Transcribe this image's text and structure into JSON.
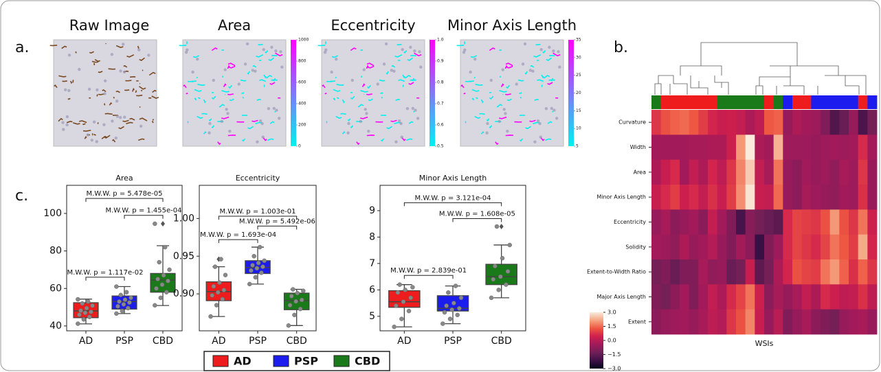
{
  "panel_labels": [
    "a.",
    "b.",
    "c."
  ],
  "panel_a": [
    {
      "title": "Raw Image"
    },
    {
      "title": "Area",
      "colorbar": {
        "lim": [
          0,
          1000
        ],
        "ticks": [
          0,
          200,
          400,
          600,
          800,
          1000
        ],
        "colors": [
          "#00f0f0",
          "#ff00ff"
        ]
      }
    },
    {
      "title": "Eccentricity",
      "colorbar": {
        "lim": [
          0.5,
          1.0
        ],
        "ticks": [
          0.5,
          0.6,
          0.7,
          0.8,
          0.9,
          {
            "value": 1,
            "label": "1.0"
          }
        ],
        "colors": [
          "#00f0f0",
          "#ff00ff"
        ]
      }
    },
    {
      "title": "Minor Axis Length",
      "colorbar": {
        "lim": [
          5,
          35
        ],
        "ticks": [
          5,
          10,
          15,
          20,
          25,
          30,
          35
        ],
        "colors": [
          "#00f0f0",
          "#ff00ff"
        ]
      }
    }
  ],
  "legend": [
    {
      "name": "AD",
      "color": "#ee1c1c"
    },
    {
      "name": "PSP",
      "color": "#1c1cee"
    },
    {
      "name": "CBD",
      "color": "#1a7a1a"
    }
  ],
  "chart_data": [
    {
      "type": "box",
      "title": "Area",
      "categories": [
        "AD",
        "PSP",
        "CBD"
      ],
      "whisker_low": [
        41.1,
        46.6,
        50.9
      ],
      "q1": [
        44.4,
        49,
        58
      ],
      "median": [
        48,
        53,
        64.5
      ],
      "q3": [
        52.4,
        56,
        68
      ],
      "whisker_high": [
        54.3,
        61,
        82.8
      ],
      "outliers": [
        [],
        [],
        [
          94.5
        ]
      ],
      "points": [
        [
          41.2,
          43.5,
          44.8,
          46,
          47,
          47.5,
          48.2,
          49.5,
          50.8,
          52,
          53,
          54.2
        ],
        [
          46.6,
          48,
          49.5,
          50.5,
          51.5,
          52.5,
          53,
          54,
          55,
          56.5,
          58,
          61
        ],
        [
          51,
          55,
          58,
          60,
          62,
          64,
          65,
          67,
          70,
          74,
          82,
          94.5
        ]
      ],
      "ylim": [
        37.4,
        115
      ],
      "yticks": [
        40,
        60,
        80,
        100
      ],
      "annotations": [
        {
          "text": "M.W.W. p = 1.117e-02",
          "y": 66
        },
        {
          "text": "M.W.W. p = 5.478e-05",
          "y": 108
        },
        {
          "text": "M.W.W. p = 1.455e-04",
          "y": 99
        }
      ]
    },
    {
      "type": "box",
      "title": "Eccentricity",
      "categories": [
        "AD",
        "PSP",
        "CBD"
      ],
      "whisker_low": [
        0.87,
        0.913,
        0.858
      ],
      "q1": [
        0.891,
        0.927,
        0.879
      ],
      "median": [
        0.903,
        0.935,
        0.891
      ],
      "q3": [
        0.916,
        0.944,
        0.901
      ],
      "whisker_high": [
        0.936,
        0.962,
        0.906
      ],
      "outliers": [
        [
          0.946
        ],
        [],
        []
      ],
      "points": [
        [
          0.87,
          0.885,
          0.893,
          0.898,
          0.902,
          0.905,
          0.91,
          0.915,
          0.925,
          0.936,
          0.946
        ],
        [
          0.913,
          0.922,
          0.928,
          0.931,
          0.934,
          0.936,
          0.938,
          0.941,
          0.944,
          0.95,
          0.962
        ],
        [
          0.858,
          0.872,
          0.88,
          0.885,
          0.89,
          0.892,
          0.897,
          0.901,
          0.904,
          0.906
        ]
      ],
      "ylim": [
        0.851,
        1.044
      ],
      "yticks": [
        {
          "value": 0.9,
          "label": "0.90"
        },
        0.95,
        {
          "value": 1,
          "label": "1.00"
        }
      ],
      "annotations": [
        {
          "text": "M.W.W. p = 1.693e-04",
          "y": 0.972
        },
        {
          "text": "M.W.W. p = 1.003e-01",
          "y": 1.003
        },
        {
          "text": "M.W.W. p = 5.492e-06",
          "y": 0.99
        }
      ]
    },
    {
      "type": "box",
      "title": "Minor Axis Length",
      "categories": [
        "AD",
        "PSP",
        "CBD"
      ],
      "whisker_low": [
        4.6,
        4.72,
        5.7
      ],
      "q1": [
        5.34,
        5.2,
        6.2
      ],
      "median": [
        5.55,
        5.3,
        6.5
      ],
      "q3": [
        5.97,
        5.78,
        6.97
      ],
      "whisker_high": [
        6.2,
        6.15,
        7.7
      ],
      "outliers": [
        [],
        [],
        [
          8.4
        ]
      ],
      "points": [
        [
          4.6,
          4.9,
          5.2,
          5.4,
          5.55,
          5.7,
          5.9,
          6.0,
          6.1,
          6.2
        ],
        [
          4.72,
          4.9,
          5.05,
          5.15,
          5.25,
          5.3,
          5.4,
          5.5,
          5.7,
          5.9,
          6.15
        ],
        [
          5.7,
          6.0,
          6.2,
          6.4,
          6.5,
          6.7,
          6.9,
          7.2,
          7.7,
          8.4
        ]
      ],
      "ylim": [
        4.45,
        9.96
      ],
      "yticks": [
        5,
        6,
        7,
        8,
        9
      ],
      "annotations": [
        {
          "text": "M.W.W. p = 2.839e-01",
          "y": 6.55
        },
        {
          "text": "M.W.W. p = 3.121e-04",
          "y": 9.3
        },
        {
          "text": "M.W.W. p = 1.608e-05",
          "y": 8.7
        }
      ]
    },
    {
      "type": "heatmap",
      "xlabel": "WSIs",
      "rows": [
        "Curvature",
        "Width",
        "Area",
        "Minor Axis Length",
        "Eccentricity",
        "Solidity",
        "Extent-to-Width Ratio",
        "Major Axis Length",
        "Extent"
      ],
      "column_groups": [
        "CBD",
        "AD",
        "AD",
        "AD",
        "AD",
        "AD",
        "AD",
        "CBD",
        "CBD",
        "CBD",
        "CBD",
        "CBD",
        "AD",
        "CBD",
        "PSP",
        "AD",
        "AD",
        "PSP",
        "PSP",
        "PSP",
        "PSP",
        "PSP",
        "AD",
        "PSP"
      ],
      "values": [
        [
          0.8,
          1.2,
          1.4,
          1.5,
          1.3,
          0.9,
          0.5,
          0.3,
          0.4,
          0.2,
          -0.2,
          0.1,
          1.3,
          1.4,
          -0.6,
          -0.2,
          -0.4,
          -0.5,
          -1.0,
          -1.8,
          -1.4,
          -0.6,
          -1.9,
          -1.2
        ],
        [
          -0.4,
          -0.4,
          -0.4,
          -0.4,
          -0.3,
          -0.3,
          -0.2,
          -0.2,
          0.4,
          2.0,
          3.0,
          -0.2,
          -0.4,
          2.3,
          -0.5,
          -0.5,
          -0.5,
          -0.6,
          -0.5,
          -0.4,
          -0.5,
          -0.4,
          0.6,
          -0.4
        ],
        [
          -0.2,
          0.3,
          0.6,
          -0.4,
          0.2,
          -0.2,
          0.5,
          0.1,
          0.8,
          1.8,
          2.6,
          0.2,
          -0.3,
          1.6,
          -0.6,
          -0.8,
          -0.4,
          -0.6,
          -0.5,
          -0.7,
          -0.3,
          -0.5,
          0.8,
          -0.6
        ],
        [
          0.3,
          0.6,
          0.9,
          0.4,
          0.6,
          0.2,
          0.7,
          0.3,
          0.9,
          1.9,
          2.9,
          0.3,
          0.2,
          1.5,
          -0.6,
          -0.8,
          -0.3,
          -0.5,
          -0.6,
          -0.7,
          -0.4,
          -0.5,
          0.7,
          -0.6
        ],
        [
          -0.6,
          -0.3,
          -0.8,
          -0.6,
          -0.4,
          -0.8,
          0.2,
          -0.4,
          -1.0,
          -2.0,
          -0.9,
          -1.2,
          -1.4,
          -1.6,
          0.6,
          1.0,
          0.9,
          0.8,
          1.2,
          2.0,
          1.2,
          0.8,
          1.6,
          0.4
        ],
        [
          -0.4,
          -0.5,
          -0.7,
          -0.2,
          -0.6,
          -0.4,
          -0.1,
          -0.6,
          -1.0,
          -0.4,
          -0.8,
          -2.2,
          -1.0,
          -0.5,
          0.6,
          1.0,
          0.8,
          0.6,
          1.0,
          1.6,
          1.3,
          0.9,
          2.2,
          0.5
        ],
        [
          -1.2,
          -1.0,
          -1.4,
          -1.0,
          -1.0,
          -0.3,
          -0.7,
          -0.6,
          -1.4,
          -1.2,
          0.3,
          -1.6,
          -1.2,
          -0.2,
          0.5,
          1.2,
          1.0,
          0.9,
          1.6,
          2.0,
          1.4,
          0.7,
          1.4,
          0.8
        ],
        [
          -1.0,
          -1.2,
          -0.8,
          -0.4,
          -1.0,
          -0.4,
          0.2,
          -0.2,
          0.6,
          1.0,
          1.6,
          0.4,
          -0.8,
          -0.3,
          -0.6,
          -0.3,
          0.2,
          -0.2,
          0.6,
          0.4,
          0.1,
          0.2,
          0.7,
          0.1
        ],
        [
          -0.8,
          -0.6,
          -0.5,
          -0.4,
          -0.6,
          -0.3,
          0.1,
          -0.1,
          0.8,
          1.2,
          1.8,
          0.3,
          -0.6,
          0.0,
          -1.0,
          -0.6,
          -0.3,
          -0.8,
          -1.0,
          -1.2,
          -0.6,
          -0.4,
          -0.3,
          -0.6
        ]
      ],
      "vlim": [
        -3,
        3
      ],
      "colormap": [
        "#03051a",
        "#3d1147",
        "#701f57",
        "#a11a5b",
        "#cf1f4d",
        "#ee5641",
        "#f5a582",
        "#faebdd"
      ],
      "colorbar_ticks": [
        {
          "value": 3,
          "label": "3.0"
        },
        1.5,
        {
          "value": 0,
          "label": "0.0"
        },
        {
          "value": -1.5,
          "label": "−1.5"
        },
        {
          "value": -3,
          "label": "−3.0"
        }
      ]
    }
  ]
}
